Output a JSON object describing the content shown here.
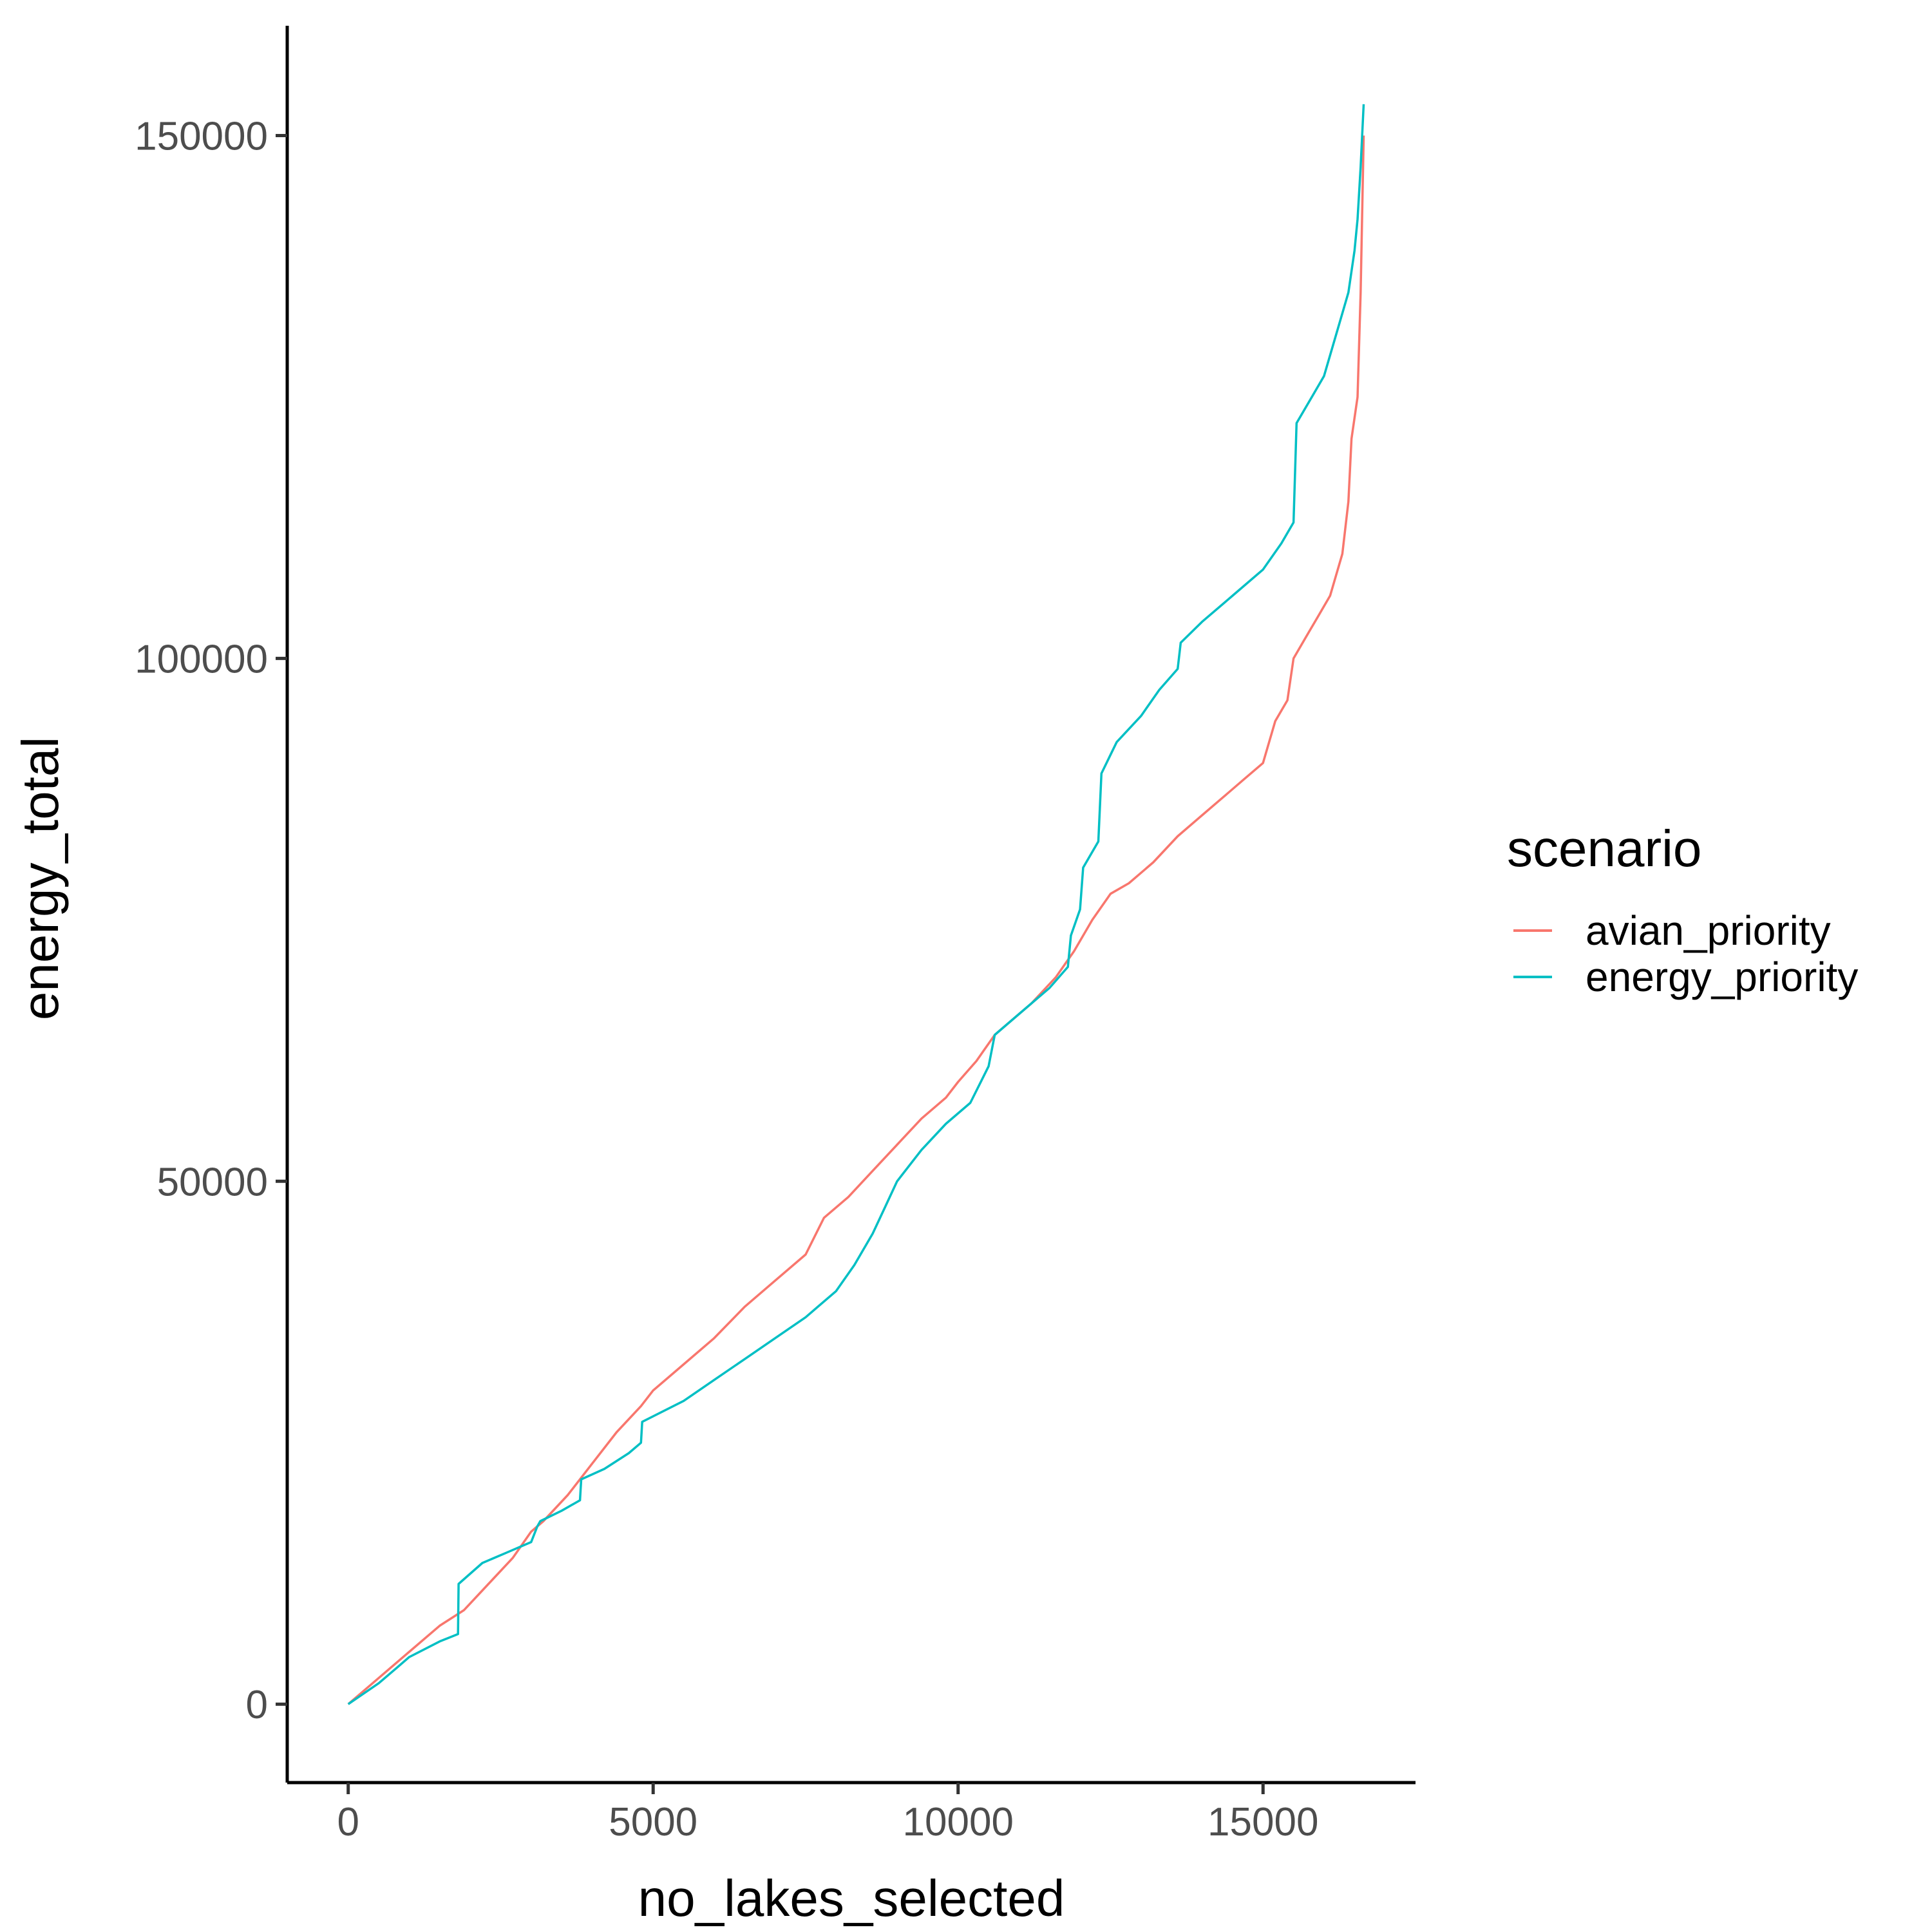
{
  "chart_data": {
    "type": "line",
    "xlabel": "no_lakes_selected",
    "ylabel": "energy_total",
    "xlim": [
      -1000,
      17500
    ],
    "ylim": [
      -7500,
      160500
    ],
    "xticks": [
      0,
      5000,
      10000,
      15000
    ],
    "yticks": [
      0,
      50000,
      100000,
      150000
    ],
    "xtick_labels": [
      "0",
      "5000",
      "10000",
      "15000"
    ],
    "ytick_labels": [
      "0",
      "50000",
      "100000",
      "150000"
    ],
    "grid": false,
    "legend": {
      "title": "scenario",
      "position": "right"
    },
    "series": [
      {
        "name": "avian_priority",
        "color": "#F8766D",
        "x": [
          0,
          500,
          1000,
          1500,
          1900,
          2300,
          2700,
          3000,
          3200,
          3600,
          4000,
          4400,
          4800,
          5000,
          5500,
          6000,
          6500,
          7000,
          7500,
          7800,
          8200,
          8600,
          9000,
          9400,
          9800,
          10000,
          10300,
          10600,
          10800,
          11200,
          11600,
          11900,
          12200,
          12500,
          12800,
          13200,
          13600,
          14000,
          14300,
          14700,
          15000,
          15100,
          15200,
          15400,
          15500,
          15700,
          15900,
          16100,
          16200,
          16300,
          16400,
          16450,
          16550,
          16600,
          16650
        ],
        "y": [
          0,
          2500,
          5000,
          7500,
          9000,
          11500,
          14000,
          16500,
          17500,
          20000,
          23000,
          26000,
          28500,
          30000,
          32500,
          35000,
          38000,
          40500,
          43000,
          46500,
          48500,
          51000,
          53500,
          56000,
          58000,
          59500,
          61500,
          64000,
          65000,
          67000,
          69500,
          72000,
          75000,
          77500,
          78500,
          80500,
          83000,
          85000,
          86500,
          88500,
          90000,
          92000,
          94000,
          96000,
          100000,
          102000,
          104000,
          106000,
          108000,
          110000,
          115000,
          121000,
          125000,
          135000,
          150000
        ]
      },
      {
        "name": "energy_priority",
        "color": "#00BFC4",
        "x": [
          0,
          500,
          800,
          1000,
          1500,
          1800,
          1810,
          2200,
          2600,
          3000,
          3100,
          3150,
          3500,
          3800,
          3820,
          4200,
          4600,
          4800,
          4820,
          5500,
          6000,
          6500,
          7000,
          7500,
          8000,
          8300,
          8600,
          8800,
          9000,
          9400,
          9800,
          10200,
          10500,
          10600,
          11000,
          11500,
          11800,
          11850,
          12000,
          12050,
          12300,
          12350,
          12600,
          13000,
          13300,
          13600,
          13650,
          14000,
          14500,
          15000,
          15300,
          15500,
          15550,
          15800,
          16000,
          16100,
          16200,
          16300,
          16400,
          16500,
          16550,
          16600,
          16650
        ],
        "y": [
          0,
          2000,
          3500,
          4500,
          6000,
          6700,
          11500,
          13500,
          14500,
          15500,
          17000,
          17500,
          18500,
          19500,
          21500,
          22500,
          24000,
          25000,
          27000,
          29000,
          31000,
          33000,
          35000,
          37000,
          39500,
          42000,
          45000,
          47500,
          50000,
          53000,
          55500,
          57500,
          61000,
          64000,
          66000,
          68500,
          70500,
          73500,
          76000,
          80000,
          82500,
          89000,
          92000,
          94500,
          97000,
          99000,
          101500,
          103500,
          106000,
          108500,
          111000,
          113000,
          122500,
          125000,
          127000,
          129000,
          131000,
          133000,
          135000,
          139000,
          142000,
          147000,
          153000
        ]
      }
    ]
  }
}
